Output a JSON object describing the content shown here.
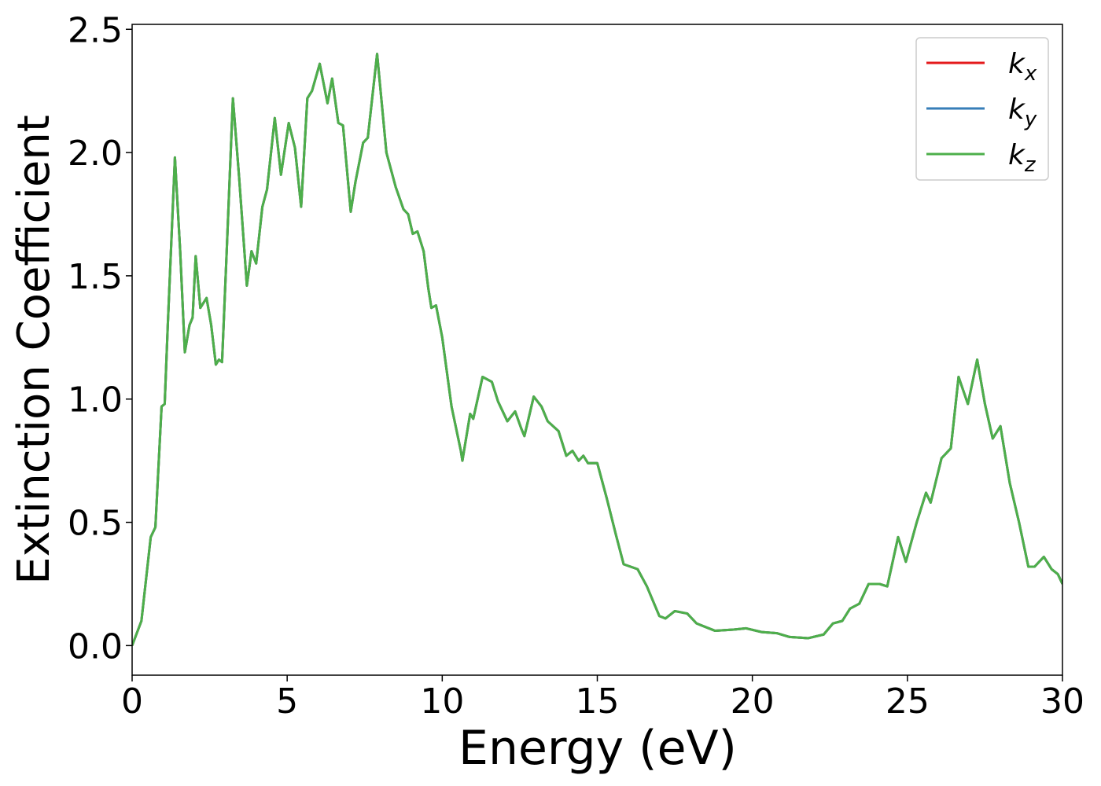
{
  "chart_data": {
    "type": "line",
    "xlabel": "Energy (eV)",
    "ylabel": "Extinction Coefficient",
    "x": [
      0,
      0.3,
      0.6,
      0.75,
      0.95,
      1.05,
      1.15,
      1.38,
      1.55,
      1.7,
      1.85,
      1.95,
      2.05,
      2.2,
      2.4,
      2.55,
      2.7,
      2.8,
      2.9,
      3.05,
      3.25,
      3.45,
      3.7,
      3.85,
      4.0,
      4.2,
      4.35,
      4.6,
      4.8,
      5.05,
      5.25,
      5.45,
      5.65,
      5.8,
      6.05,
      6.3,
      6.45,
      6.65,
      6.8,
      7.05,
      7.2,
      7.45,
      7.6,
      7.9,
      8.2,
      8.5,
      8.75,
      8.9,
      9.05,
      9.2,
      9.4,
      9.55,
      9.65,
      9.8,
      10.0,
      10.3,
      10.6,
      10.65,
      10.9,
      11.0,
      11.3,
      11.6,
      11.8,
      12.1,
      12.35,
      12.55,
      12.65,
      12.95,
      13.2,
      13.4,
      13.75,
      14.0,
      14.2,
      14.4,
      14.55,
      14.7,
      15.0,
      15.3,
      15.6,
      15.85,
      16.3,
      16.6,
      17.0,
      17.2,
      17.5,
      17.9,
      18.2,
      18.8,
      19.4,
      19.8,
      20.3,
      20.8,
      21.2,
      21.8,
      22.3,
      22.6,
      22.9,
      23.15,
      23.45,
      23.75,
      24.1,
      24.35,
      24.7,
      24.95,
      25.3,
      25.6,
      25.75,
      26.1,
      26.4,
      26.65,
      26.95,
      27.25,
      27.5,
      27.75,
      28.0,
      28.3,
      28.6,
      28.9,
      29.1,
      29.4,
      29.65,
      29.85,
      30
    ],
    "series": [
      {
        "name": "kx",
        "color": "#e41a1c",
        "values": [
          0,
          0.1,
          0.44,
          0.48,
          0.97,
          0.98,
          1.3,
          1.98,
          1.6,
          1.19,
          1.3,
          1.33,
          1.58,
          1.37,
          1.41,
          1.3,
          1.14,
          1.16,
          1.15,
          1.6,
          2.22,
          1.9,
          1.46,
          1.6,
          1.55,
          1.78,
          1.85,
          2.14,
          1.91,
          2.12,
          2.02,
          1.78,
          2.22,
          2.25,
          2.36,
          2.2,
          2.3,
          2.12,
          2.11,
          1.76,
          1.88,
          2.04,
          2.06,
          2.4,
          2.0,
          1.86,
          1.77,
          1.75,
          1.67,
          1.68,
          1.6,
          1.45,
          1.37,
          1.38,
          1.25,
          0.97,
          0.79,
          0.75,
          0.94,
          0.92,
          1.09,
          1.07,
          0.99,
          0.91,
          0.95,
          0.88,
          0.85,
          1.01,
          0.97,
          0.91,
          0.87,
          0.77,
          0.79,
          0.75,
          0.77,
          0.74,
          0.74,
          0.6,
          0.45,
          0.33,
          0.31,
          0.24,
          0.12,
          0.11,
          0.14,
          0.13,
          0.09,
          0.06,
          0.065,
          0.07,
          0.055,
          0.05,
          0.035,
          0.03,
          0.045,
          0.09,
          0.1,
          0.15,
          0.17,
          0.25,
          0.25,
          0.24,
          0.44,
          0.34,
          0.5,
          0.62,
          0.58,
          0.76,
          0.8,
          1.09,
          0.98,
          1.16,
          0.98,
          0.84,
          0.89,
          0.66,
          0.5,
          0.32,
          0.32,
          0.36,
          0.31,
          0.29,
          0.25
        ]
      },
      {
        "name": "ky",
        "color": "#377eb8",
        "values": [
          0,
          0.1,
          0.44,
          0.48,
          0.97,
          0.98,
          1.3,
          1.98,
          1.6,
          1.19,
          1.3,
          1.33,
          1.58,
          1.37,
          1.41,
          1.3,
          1.14,
          1.16,
          1.15,
          1.6,
          2.22,
          1.9,
          1.46,
          1.6,
          1.55,
          1.78,
          1.85,
          2.14,
          1.91,
          2.12,
          2.02,
          1.78,
          2.22,
          2.25,
          2.36,
          2.2,
          2.3,
          2.12,
          2.11,
          1.76,
          1.88,
          2.04,
          2.06,
          2.4,
          2.0,
          1.86,
          1.77,
          1.75,
          1.67,
          1.68,
          1.6,
          1.45,
          1.37,
          1.38,
          1.25,
          0.97,
          0.79,
          0.75,
          0.94,
          0.92,
          1.09,
          1.07,
          0.99,
          0.91,
          0.95,
          0.88,
          0.85,
          1.01,
          0.97,
          0.91,
          0.87,
          0.77,
          0.79,
          0.75,
          0.77,
          0.74,
          0.74,
          0.6,
          0.45,
          0.33,
          0.31,
          0.24,
          0.12,
          0.11,
          0.14,
          0.13,
          0.09,
          0.06,
          0.065,
          0.07,
          0.055,
          0.05,
          0.035,
          0.03,
          0.045,
          0.09,
          0.1,
          0.15,
          0.17,
          0.25,
          0.25,
          0.24,
          0.44,
          0.34,
          0.5,
          0.62,
          0.58,
          0.76,
          0.8,
          1.09,
          0.98,
          1.16,
          0.98,
          0.84,
          0.89,
          0.66,
          0.5,
          0.32,
          0.32,
          0.36,
          0.31,
          0.29,
          0.25
        ]
      },
      {
        "name": "kz",
        "color": "#4daf4a",
        "values": [
          0,
          0.1,
          0.44,
          0.48,
          0.97,
          0.98,
          1.3,
          1.98,
          1.6,
          1.19,
          1.3,
          1.33,
          1.58,
          1.37,
          1.41,
          1.3,
          1.14,
          1.16,
          1.15,
          1.6,
          2.22,
          1.9,
          1.46,
          1.6,
          1.55,
          1.78,
          1.85,
          2.14,
          1.91,
          2.12,
          2.02,
          1.78,
          2.22,
          2.25,
          2.36,
          2.2,
          2.3,
          2.12,
          2.11,
          1.76,
          1.88,
          2.04,
          2.06,
          2.4,
          2.0,
          1.86,
          1.77,
          1.75,
          1.67,
          1.68,
          1.6,
          1.45,
          1.37,
          1.38,
          1.25,
          0.97,
          0.79,
          0.75,
          0.94,
          0.92,
          1.09,
          1.07,
          0.99,
          0.91,
          0.95,
          0.88,
          0.85,
          1.01,
          0.97,
          0.91,
          0.87,
          0.77,
          0.79,
          0.75,
          0.77,
          0.74,
          0.74,
          0.6,
          0.45,
          0.33,
          0.31,
          0.24,
          0.12,
          0.11,
          0.14,
          0.13,
          0.09,
          0.06,
          0.065,
          0.07,
          0.055,
          0.05,
          0.035,
          0.03,
          0.045,
          0.09,
          0.1,
          0.15,
          0.17,
          0.25,
          0.25,
          0.24,
          0.44,
          0.34,
          0.5,
          0.62,
          0.58,
          0.76,
          0.8,
          1.09,
          0.98,
          1.16,
          0.98,
          0.84,
          0.89,
          0.66,
          0.5,
          0.32,
          0.32,
          0.36,
          0.31,
          0.29,
          0.25
        ]
      }
    ],
    "xlim": [
      0,
      30
    ],
    "xticks": [
      0,
      5,
      10,
      15,
      20,
      25,
      30
    ],
    "ylim": [
      -0.12,
      2.52
    ],
    "yticks": [
      {
        "value": 0,
        "label": "0.0"
      },
      {
        "value": 0.5,
        "label": "0.5"
      },
      {
        "value": 1,
        "label": "1.0"
      },
      {
        "value": 1.5,
        "label": "1.5"
      },
      {
        "value": 2,
        "label": "2.0"
      },
      {
        "value": 2.5,
        "label": "2.5"
      }
    ],
    "grid": false,
    "legend": "upper right"
  }
}
